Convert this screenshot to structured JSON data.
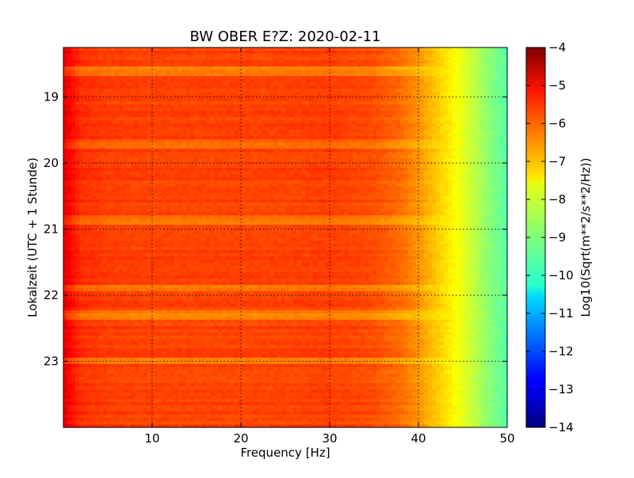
{
  "chart_data": {
    "type": "heatmap",
    "title": "BW OBER E?Z: 2020-02-11",
    "xlabel": "Frequency [Hz]",
    "ylabel": "Lokalzeit (UTC + 1 Stunde)",
    "xlim": [
      0,
      50
    ],
    "ylim": [
      18.25,
      24.0
    ],
    "y_inverted": true,
    "x_ticks": [
      10,
      20,
      30,
      40,
      50
    ],
    "x_tick_labels": [
      "10",
      "20",
      "30",
      "40",
      "50"
    ],
    "y_ticks": [
      19,
      20,
      21,
      22,
      23
    ],
    "y_tick_labels": [
      "19",
      "20",
      "21",
      "22",
      "23"
    ],
    "grid": true,
    "colormap": "jet",
    "colorbar": {
      "label": "Log10(Sqrt(m**2/s**2/Hz))",
      "range": [
        -14,
        -4
      ],
      "ticks": [
        -4,
        -5,
        -6,
        -7,
        -8,
        -9,
        -10,
        -11,
        -12,
        -13,
        -14
      ],
      "tick_labels": [
        "−4",
        "−5",
        "−6",
        "−7",
        "−8",
        "−9",
        "−10",
        "−11",
        "−12",
        "−13",
        "−14"
      ]
    },
    "frequency_profile": {
      "frequency_hz": [
        0,
        1,
        2,
        5,
        10,
        15,
        20,
        25,
        30,
        35,
        38,
        40,
        42,
        44,
        46,
        48,
        50
      ],
      "log_amplitude": [
        -5.0,
        -5.4,
        -5.7,
        -5.85,
        -5.9,
        -5.9,
        -5.9,
        -5.9,
        -5.85,
        -6.0,
        -6.3,
        -6.7,
        -7.2,
        -7.7,
        -8.3,
        -8.9,
        -9.4
      ]
    },
    "strong_time_bands": [
      {
        "time_h": 18.6,
        "log_amplitude": -5.3
      },
      {
        "time_h": 19.7,
        "log_amplitude": -5.5
      },
      {
        "time_h": 20.85,
        "log_amplitude": -5.4
      },
      {
        "time_h": 21.9,
        "log_amplitude": -5.4
      },
      {
        "time_h": 22.3,
        "log_amplitude": -5.3
      },
      {
        "time_h": 23.0,
        "log_amplitude": -5.2
      }
    ]
  }
}
